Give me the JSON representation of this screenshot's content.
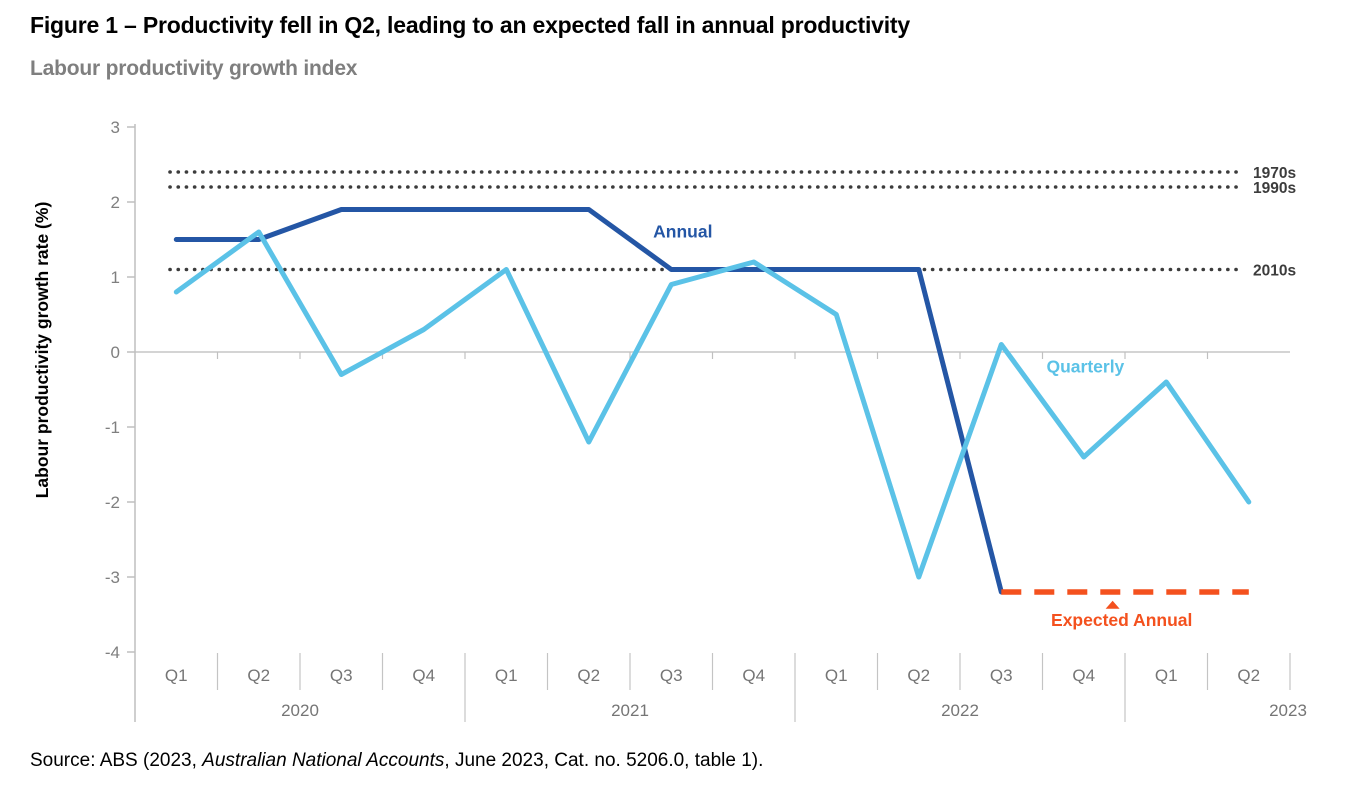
{
  "header": {
    "title": "Figure 1 – Productivity fell in Q2, leading to an expected fall in annual productivity",
    "subtitle": "Labour productivity growth index"
  },
  "source": {
    "prefix": "Source: ABS (2023, ",
    "italic": "Australian National Accounts",
    "suffix": ", June 2023, Cat. no. 5206.0, table 1)."
  },
  "chart_data": {
    "type": "line",
    "ylabel": "Labour productivity growth rate (%)",
    "ylim": [
      -4,
      3
    ],
    "yticks": [
      3,
      2,
      1,
      0,
      -1,
      -2,
      -3,
      -4
    ],
    "grid": "zero-line-only",
    "quarter_labels": [
      "Q1",
      "Q2",
      "Q3",
      "Q4",
      "Q1",
      "Q2",
      "Q3",
      "Q4",
      "Q1",
      "Q2",
      "Q3",
      "Q4",
      "Q1",
      "Q2"
    ],
    "year_groups": [
      {
        "label": "2020",
        "quarters": 4
      },
      {
        "label": "2021",
        "quarters": 4
      },
      {
        "label": "2022",
        "quarters": 4
      },
      {
        "label": "2023",
        "quarters": 2
      }
    ],
    "reference_lines": [
      {
        "label": "1970s",
        "value": 2.4
      },
      {
        "label": "1990s",
        "value": 2.2
      },
      {
        "label": "2010s",
        "value": 1.1
      }
    ],
    "reference_color": "#3c3c3c",
    "series": [
      {
        "name": "Annual",
        "color": "#2456a5",
        "style": "solid",
        "values": [
          1.5,
          1.5,
          1.9,
          1.9,
          1.9,
          1.9,
          1.1,
          1.1,
          1.1,
          1.1,
          -3.2,
          null,
          null,
          null
        ]
      },
      {
        "name": "Quarterly",
        "color": "#5bc2e7",
        "style": "solid",
        "values": [
          0.8,
          1.6,
          -0.3,
          0.3,
          1.1,
          -1.2,
          0.9,
          1.2,
          0.5,
          -3.0,
          0.1,
          -1.4,
          -0.4,
          -2.0
        ]
      },
      {
        "name": "Expected Annual",
        "color": "#f4511e",
        "style": "dashed",
        "values": [
          null,
          null,
          null,
          null,
          null,
          null,
          null,
          null,
          null,
          null,
          -3.2,
          -3.2,
          -3.2,
          -3.2
        ]
      }
    ],
    "annotations": [
      {
        "text": "Annual",
        "color": "#2456a5",
        "x_index": 6.14,
        "value": 1.61
      },
      {
        "text": "Quarterly",
        "color": "#5bc2e7",
        "x_index": 11.02,
        "value": -0.19
      },
      {
        "text": "Expected Annual",
        "color": "#f4511e",
        "x_index": 11.46,
        "value": -3.57,
        "marker": "triangle-up",
        "marker_x_index": 11.35,
        "marker_value": -3.37
      }
    ],
    "legend_position": "inline-labels"
  }
}
